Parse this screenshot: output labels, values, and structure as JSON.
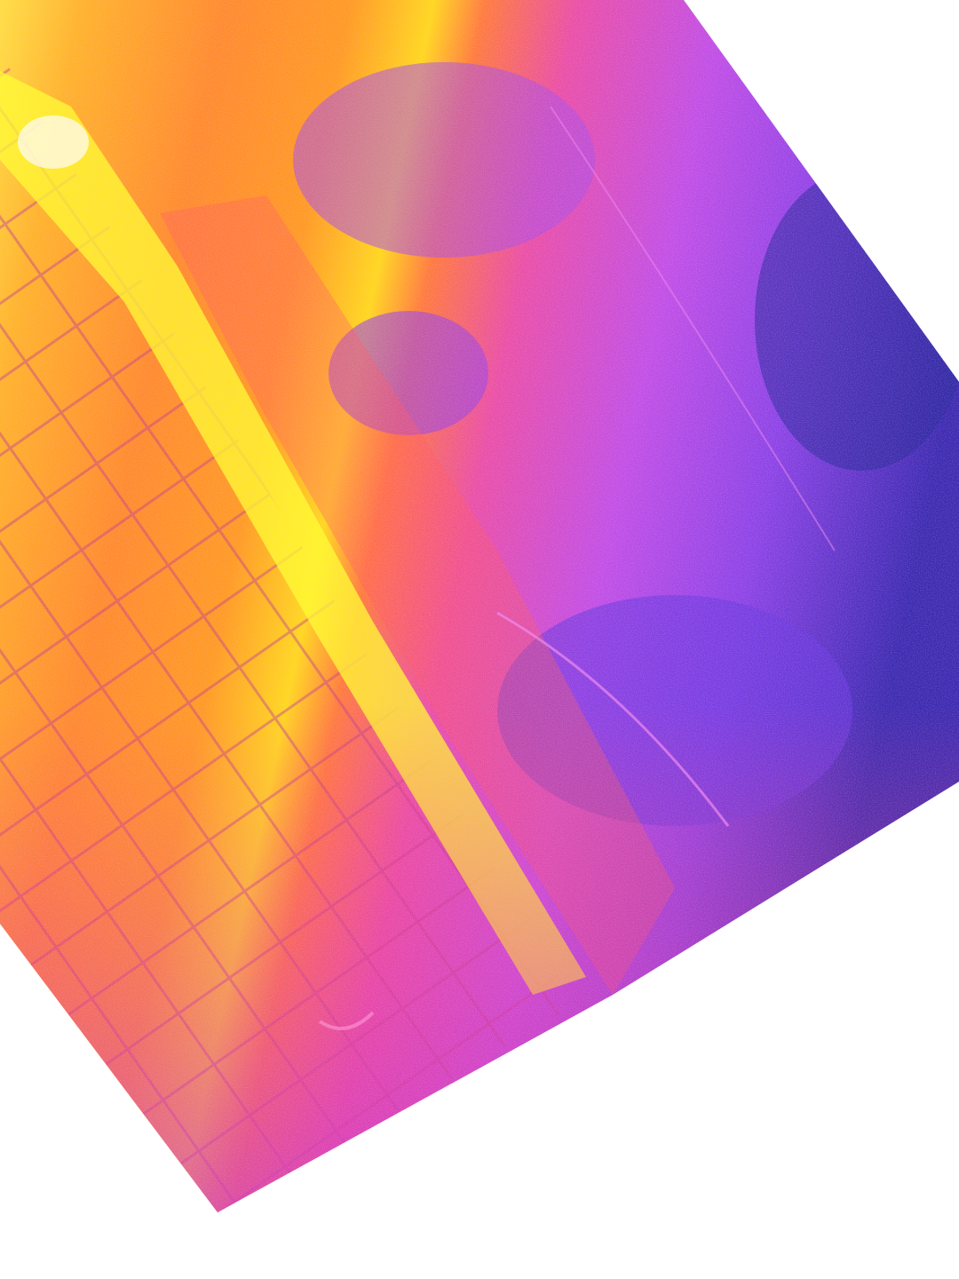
{
  "image": {
    "kind": "thermal-camera-photo",
    "palette": [
      "#ffff00",
      "#ffc21a",
      "#ff8a2a",
      "#ff4f6e",
      "#e84aa8",
      "#b44ee0",
      "#7a3fe6",
      "#4a2fd6",
      "#1f2a7a"
    ],
    "background": "#ffffff",
    "regions": [
      {
        "name": "hot-tiled-wall",
        "color": "#ffb020"
      },
      {
        "name": "hottest-strip",
        "color": "#ffff30"
      },
      {
        "name": "cool-ground",
        "color": "#c04ee6"
      },
      {
        "name": "coldest-area",
        "color": "#3d2ab8"
      }
    ]
  }
}
